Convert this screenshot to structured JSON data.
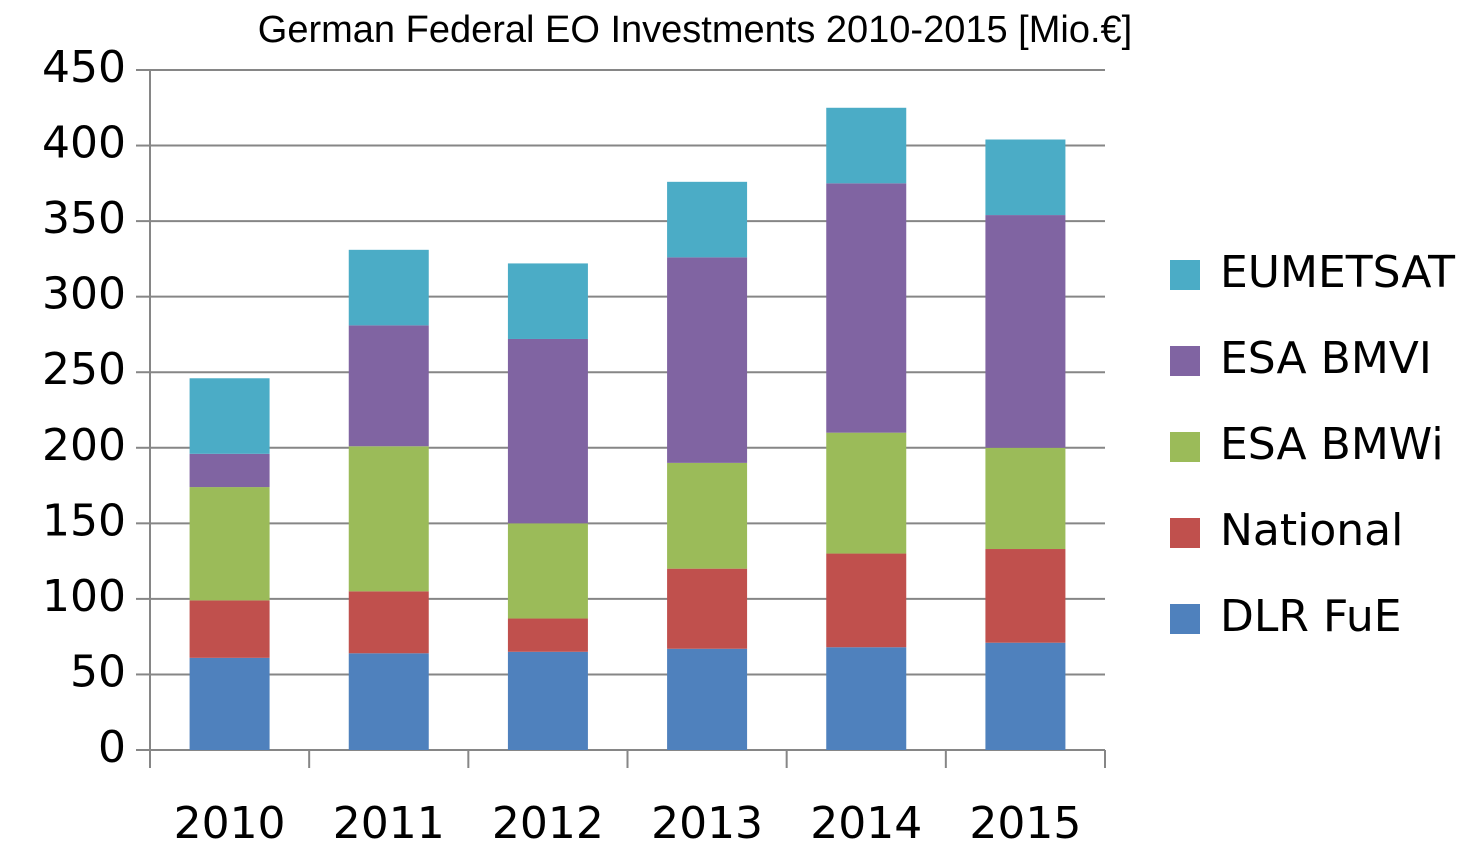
{
  "chart_data": {
    "type": "stacked_bar",
    "title": "German Federal EO Investments 2010-2015 [Mio.€]",
    "categories": [
      "2010",
      "2011",
      "2012",
      "2013",
      "2014",
      "2015"
    ],
    "series": [
      {
        "name": "DLR FuE",
        "color": "#4f81bd",
        "values": [
          61,
          64,
          65,
          67,
          68,
          71
        ]
      },
      {
        "name": "National",
        "color": "#c0504d",
        "values": [
          38,
          41,
          22,
          53,
          62,
          62
        ]
      },
      {
        "name": "ESA BMWi",
        "color": "#9bbb59",
        "values": [
          75,
          96,
          63,
          70,
          80,
          67
        ]
      },
      {
        "name": "ESA BMVI",
        "color": "#8064a2",
        "values": [
          22,
          80,
          122,
          136,
          165,
          154
        ]
      },
      {
        "name": "EUMETSAT",
        "color": "#4bacc6",
        "values": [
          50,
          50,
          50,
          50,
          50,
          50
        ]
      }
    ],
    "ylim": [
      0,
      450
    ],
    "yticks": [
      0,
      50,
      100,
      150,
      200,
      250,
      300,
      350,
      400,
      450
    ],
    "grid": true,
    "legend": "right"
  }
}
